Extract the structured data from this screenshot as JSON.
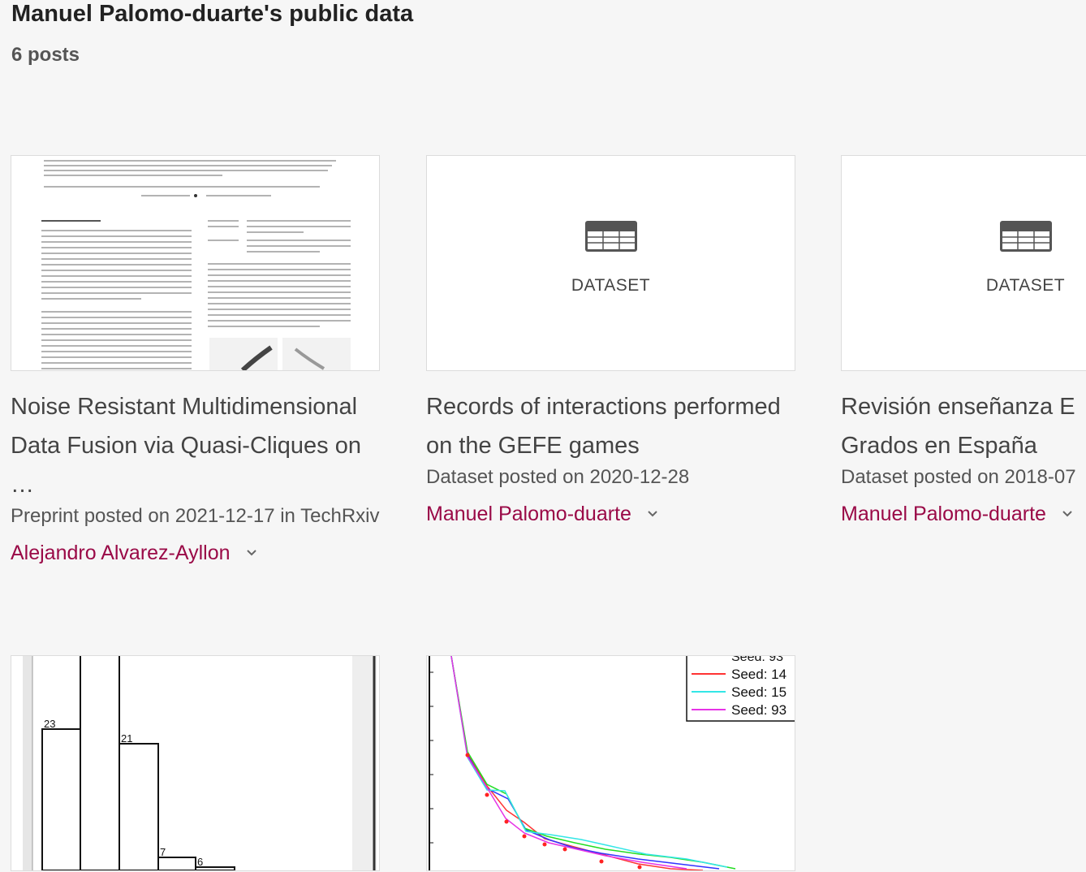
{
  "header": {
    "title": "Manuel Palomo-duarte's public data",
    "post_count": "6 posts"
  },
  "cards": [
    {
      "title": "Noise Resistant Multidimensional Data Fusion via Quasi-Cliques on …",
      "meta": "Preprint posted on 2021-12-17 in TechRxiv",
      "author": "Alejandro Alvarez-Ayllon",
      "thumb_type": "preprint-page"
    },
    {
      "title": "Records of interactions performed on the GEFE games",
      "meta": "Dataset posted on 2020-12-28",
      "author": "Manuel Palomo-duarte",
      "thumb_type": "dataset",
      "thumb_label": "DATASET"
    },
    {
      "title": "Revisión enseñanza E Grados en España",
      "meta": "Dataset posted on 2018-07",
      "author": "Manuel Palomo-duarte",
      "thumb_type": "dataset",
      "thumb_label": "DATASET"
    },
    {
      "thumb_type": "histogram",
      "bar_labels": [
        "23",
        "21",
        "7",
        "6"
      ]
    },
    {
      "thumb_type": "line-plot",
      "legend": [
        {
          "label": "Seed: 14",
          "color": "#ff3333"
        },
        {
          "label": "Seed: 15",
          "color": "#33e6e6"
        },
        {
          "label": "Seed: 93",
          "color": "#e633e6"
        }
      ]
    }
  ],
  "colors": {
    "author": "#9a0a47",
    "background": "#f6f6f6"
  }
}
